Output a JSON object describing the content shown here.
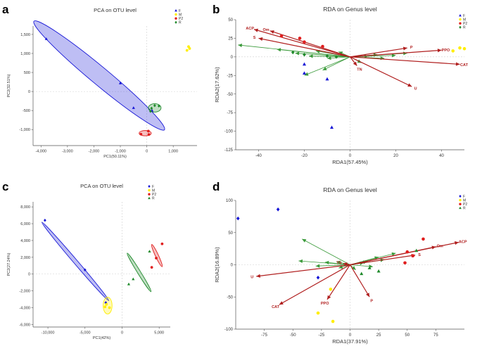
{
  "panel_letters": [
    "a",
    "b",
    "c",
    "d"
  ],
  "colors": {
    "F": "#1515d6",
    "M": "#ffee00",
    "P2": "#e01e1e",
    "R": "#1f8a2b",
    "arrow": "#b01e1e",
    "env": "#3a9a3a",
    "grid": "#cccccc"
  },
  "chart_data": [
    {
      "type": "scatter",
      "panel": "a",
      "title": "PCA on OTU level",
      "xlabel": "PC1(50.11%)",
      "ylabel": "PC2(32.51%)",
      "xlim": [
        -4300,
        1900
      ],
      "ylim": [
        -1420,
        1720
      ],
      "xticks": [
        -4000,
        -3000,
        -2000,
        -1000,
        0,
        1000
      ],
      "xtick_labels": [
        "-4,000",
        "-3,000",
        "-2,000",
        "-1,000",
        "0",
        "1,000"
      ],
      "yticks": [
        -1000,
        -500,
        0,
        500,
        1000,
        1500
      ],
      "ytick_labels": [
        "-1,000",
        "-500",
        "0",
        "500",
        "1,000",
        "1,500"
      ],
      "legend": [
        "F",
        "M",
        "P2",
        "R"
      ],
      "legend_position": "top-right",
      "series": [
        {
          "name": "F",
          "shape": "triangle",
          "points": [
            [
              -3800,
              1380
            ],
            [
              -1000,
              220
            ],
            [
              -500,
              -430
            ],
            [
              200,
              -500
            ]
          ]
        },
        {
          "name": "M",
          "shape": "circle",
          "points": [
            [
              1580,
              1180
            ],
            [
              1520,
              1080
            ],
            [
              1620,
              1130
            ]
          ]
        },
        {
          "name": "P2",
          "shape": "circle",
          "points": [
            [
              -220,
              -1120
            ],
            [
              60,
              -1040
            ],
            [
              80,
              -1130
            ]
          ]
        },
        {
          "name": "R",
          "shape": "diamond",
          "points": [
            [
              180,
              -440
            ],
            [
              300,
              -370
            ],
            [
              460,
              -380
            ],
            [
              140,
              -520
            ]
          ]
        }
      ],
      "ellipses": [
        {
          "group": "F",
          "cx": -1800,
          "cy": 420,
          "rx": 2850,
          "ry": 250,
          "angle_deg": -30
        },
        {
          "group": "P2",
          "cx": -60,
          "cy": -1095,
          "rx": 230,
          "ry": 70,
          "angle_deg": 0
        },
        {
          "group": "R",
          "cx": 300,
          "cy": -430,
          "rx": 240,
          "ry": 110,
          "angle_deg": 0
        }
      ]
    },
    {
      "type": "scatter",
      "panel": "b",
      "title": "RDA on Genus level",
      "xlabel": "RDA1(57.45%)",
      "ylabel": "RDA2(17.62%)",
      "xlim": [
        -50,
        50
      ],
      "ylim": [
        -125,
        50
      ],
      "xticks": [
        -40,
        -20,
        0,
        20,
        40
      ],
      "xtick_labels": [
        "-40",
        "-20",
        "0",
        "20",
        "40"
      ],
      "yticks": [
        -125,
        -100,
        -75,
        -50,
        -25,
        0,
        25,
        50
      ],
      "ytick_labels": [
        "-125",
        "-100",
        "-75",
        "-50",
        "-25",
        "0",
        "25",
        "50"
      ],
      "legend": [
        "F",
        "M",
        "P2",
        "R"
      ],
      "legend_position": "top-right",
      "series": [
        {
          "name": "F",
          "shape": "triangle",
          "points": [
            [
              -20,
              -10
            ],
            [
              -20,
              -22
            ],
            [
              -10,
              -30
            ],
            [
              -8,
              -95
            ]
          ]
        },
        {
          "name": "M",
          "shape": "circle",
          "points": [
            [
              45,
              8
            ],
            [
              48,
              12
            ],
            [
              50,
              11
            ]
          ]
        },
        {
          "name": "P2",
          "shape": "circle",
          "points": [
            [
              -30,
              28
            ],
            [
              -22,
              25
            ],
            [
              -20,
              20
            ],
            [
              -12,
              14
            ]
          ]
        },
        {
          "name": "R",
          "shape": "diamond",
          "points": [
            [
              -25,
              6
            ],
            [
              -20,
              3
            ],
            [
              -10,
              1
            ],
            [
              -6,
              0
            ]
          ]
        }
      ],
      "env_arrows": [
        {
          "label": "ACP",
          "x": -42,
          "y": 37
        },
        {
          "label": "Om",
          "x": -35,
          "y": 35
        },
        {
          "label": "S",
          "x": -40,
          "y": 25
        },
        {
          "label": "P",
          "x": 25,
          "y": 12
        },
        {
          "label": "PPO",
          "x": 40,
          "y": 9
        },
        {
          "label": "CAT",
          "x": 48,
          "y": -10
        },
        {
          "label": "TN",
          "x": 3,
          "y": -12
        },
        {
          "label": "U",
          "x": 27,
          "y": -40
        }
      ],
      "species_arrows": [
        [
          -49,
          16
        ],
        [
          -32,
          10
        ],
        [
          -24,
          5
        ],
        [
          -18,
          1
        ],
        [
          -10,
          -2
        ],
        [
          -20,
          -25
        ],
        [
          -12,
          -18
        ],
        [
          20,
          2
        ],
        [
          25,
          5
        ],
        [
          12,
          3
        ],
        [
          8,
          1
        ],
        [
          15,
          -2
        ],
        [
          -5,
          7
        ],
        [
          -15,
          8
        ],
        [
          5,
          -8
        ]
      ]
    },
    {
      "type": "scatter",
      "panel": "c",
      "title": "PCA on OTU level",
      "xlabel": "PC1(42%)",
      "ylabel": "PC2(27.24%)",
      "xlim": [
        -12000,
        6500
      ],
      "ylim": [
        -6300,
        8600
      ],
      "xticks": [
        -10000,
        -5000,
        0,
        5000
      ],
      "xtick_labels": [
        "-10,000",
        "-5,000",
        "0",
        "5,000"
      ],
      "yticks": [
        -6000,
        -4000,
        -2000,
        0,
        2000,
        4000,
        6000,
        8000
      ],
      "ytick_labels": [
        "-6,000",
        "-4,000",
        "-2,000",
        "0",
        "2,000",
        "4,000",
        "6,000",
        "8,000"
      ],
      "legend": [
        "F",
        "M",
        "P2",
        "R"
      ],
      "legend_position": "top-right",
      "series": [
        {
          "name": "F",
          "shape": "diamond",
          "points": [
            [
              -10400,
              6400
            ],
            [
              -5000,
              500
            ],
            [
              -2200,
              -3400
            ]
          ]
        },
        {
          "name": "M",
          "shape": "circle",
          "points": [
            [
              -2100,
              -3600
            ],
            [
              -1700,
              -4000
            ],
            [
              -2300,
              -3900
            ]
          ]
        },
        {
          "name": "P2",
          "shape": "circle",
          "points": [
            [
              5400,
              3600
            ],
            [
              4600,
              1900
            ],
            [
              4000,
              800
            ]
          ]
        },
        {
          "name": "R",
          "shape": "triangle",
          "points": [
            [
              3700,
              2700
            ],
            [
              1500,
              -600
            ],
            [
              900,
              -1200
            ]
          ]
        }
      ],
      "ellipses": [
        {
          "group": "F",
          "cx": -6300,
          "cy": 1500,
          "rx": 6500,
          "ry": 250,
          "angle_deg": -46
        },
        {
          "group": "M",
          "cx": -1950,
          "cy": -3750,
          "rx": 600,
          "ry": 1000,
          "angle_deg": 0
        },
        {
          "group": "P2",
          "cx": 4700,
          "cy": 2200,
          "rx": 1500,
          "ry": 90,
          "angle_deg": -62
        },
        {
          "group": "R",
          "cx": 2300,
          "cy": 200,
          "rx": 2800,
          "ry": 80,
          "angle_deg": -55
        }
      ]
    },
    {
      "type": "scatter",
      "panel": "d",
      "title": "RDA on Genus level",
      "xlabel": "RDA1(37.91%)",
      "ylabel": "RDA2(16.89%)",
      "xlim": [
        -100,
        100
      ],
      "ylim": [
        -100,
        100
      ],
      "xticks": [
        -75,
        -50,
        -25,
        0,
        25,
        50,
        75
      ],
      "xtick_labels": [
        "-75",
        "-50",
        "-25",
        "0",
        "25",
        "50",
        "75"
      ],
      "yticks": [
        -100,
        -50,
        0,
        50,
        100
      ],
      "ytick_labels": [
        "-100",
        "-50",
        "0",
        "50",
        "100"
      ],
      "legend": [
        "F",
        "M",
        "P2",
        "R"
      ],
      "legend_position": "top-right",
      "series": [
        {
          "name": "F",
          "shape": "diamond",
          "points": [
            [
              -98,
              72
            ],
            [
              -63,
              86
            ],
            [
              -28,
              -20
            ]
          ]
        },
        {
          "name": "M",
          "shape": "circle",
          "points": [
            [
              -17,
              -38
            ],
            [
              -28,
              -75
            ],
            [
              -15,
              -88
            ]
          ]
        },
        {
          "name": "P2",
          "shape": "circle",
          "points": [
            [
              64,
              40
            ],
            [
              50,
              20
            ],
            [
              55,
              14
            ],
            [
              48,
              3
            ]
          ]
        },
        {
          "name": "R",
          "shape": "triangle",
          "points": [
            [
              17,
              -5
            ],
            [
              10,
              -14
            ],
            [
              25,
              -10
            ],
            [
              58,
              22
            ]
          ]
        }
      ],
      "env_arrows": [
        {
          "label": "ACP",
          "x": 95,
          "y": 35
        },
        {
          "label": "Om",
          "x": 75,
          "y": 28
        },
        {
          "label": "S",
          "x": 57,
          "y": 15
        },
        {
          "label": "U",
          "x": -82,
          "y": -18
        },
        {
          "label": "CAT",
          "x": -62,
          "y": -62
        },
        {
          "label": "PPO",
          "x": -20,
          "y": -54
        },
        {
          "label": "P",
          "x": 17,
          "y": -50
        },
        {
          "label": "TN",
          "x": -6,
          "y": 2
        }
      ],
      "species_arrows": [
        [
          -42,
          40
        ],
        [
          -45,
          6
        ],
        [
          -22,
          4
        ],
        [
          -30,
          -2
        ],
        [
          25,
          12
        ],
        [
          40,
          18
        ],
        [
          30,
          8
        ],
        [
          15,
          5
        ],
        [
          -10,
          -5
        ],
        [
          5,
          -8
        ],
        [
          20,
          -3
        ],
        [
          12,
          3
        ],
        [
          -12,
          5
        ]
      ]
    }
  ]
}
